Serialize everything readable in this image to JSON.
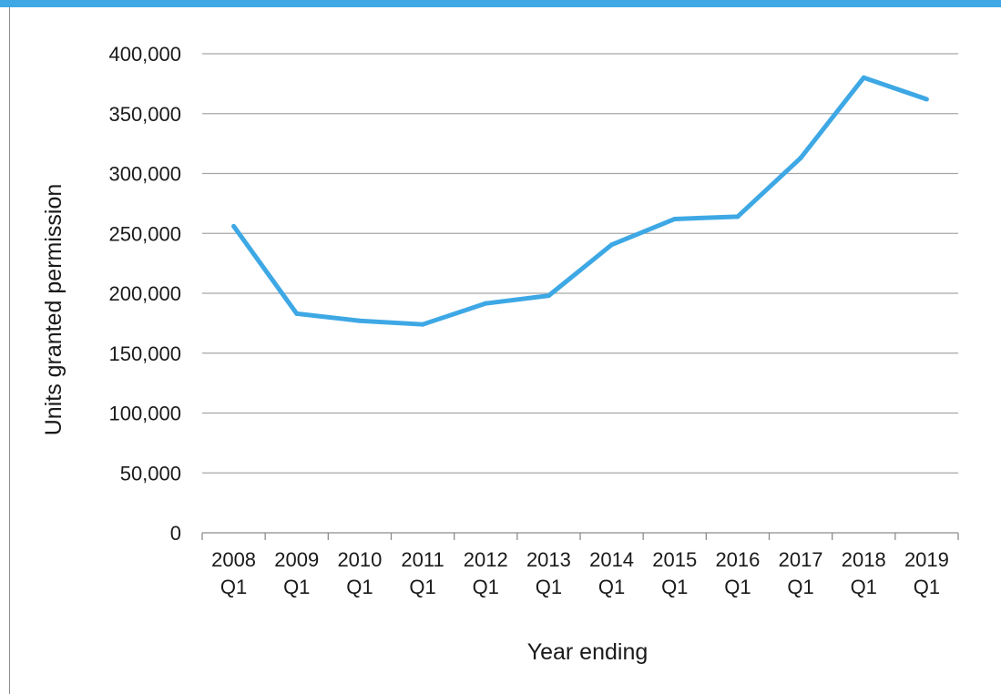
{
  "colors": {
    "top_bar": "#3ea8e5",
    "line": "#3ea8e5",
    "grid": "#a6a6a6",
    "axis": "#8c8c8c",
    "text": "#1a1a1a"
  },
  "chart_data": {
    "type": "line",
    "xlabel": "Year ending",
    "ylabel": "Units granted permission",
    "categories": [
      [
        "2008",
        "Q1"
      ],
      [
        "2009",
        "Q1"
      ],
      [
        "2010",
        "Q1"
      ],
      [
        "2011",
        "Q1"
      ],
      [
        "2012",
        "Q1"
      ],
      [
        "2013",
        "Q1"
      ],
      [
        "2014",
        "Q1"
      ],
      [
        "2015",
        "Q1"
      ],
      [
        "2016",
        "Q1"
      ],
      [
        "2017",
        "Q1"
      ],
      [
        "2018",
        "Q1"
      ],
      [
        "2019",
        "Q1"
      ]
    ],
    "series": [
      {
        "values": [
          256000,
          183000,
          177000,
          174000,
          191500,
          198000,
          240500,
          262000,
          264000,
          313000,
          380000,
          362000
        ]
      }
    ],
    "ylim": [
      0,
      400000
    ],
    "yticks": [
      0,
      50000,
      100000,
      150000,
      200000,
      250000,
      300000,
      350000,
      400000
    ],
    "ytick_labels": [
      "0",
      "50,000",
      "100,000",
      "150,000",
      "200,000",
      "250,000",
      "300,000",
      "350,000",
      "400,000"
    ],
    "grid": true,
    "legend": "none"
  }
}
